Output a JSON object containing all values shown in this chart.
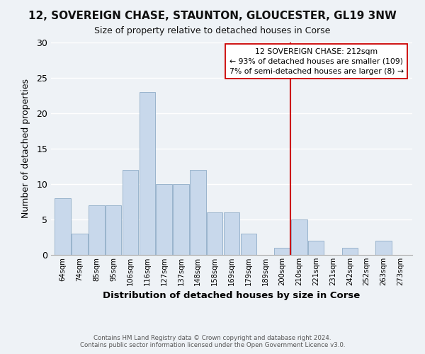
{
  "title": "12, SOVEREIGN CHASE, STAUNTON, GLOUCESTER, GL19 3NW",
  "subtitle": "Size of property relative to detached houses in Corse",
  "xlabel": "Distribution of detached houses by size in Corse",
  "ylabel": "Number of detached properties",
  "bin_labels": [
    "64sqm",
    "74sqm",
    "85sqm",
    "95sqm",
    "106sqm",
    "116sqm",
    "127sqm",
    "137sqm",
    "148sqm",
    "158sqm",
    "169sqm",
    "179sqm",
    "189sqm",
    "200sqm",
    "210sqm",
    "221sqm",
    "231sqm",
    "242sqm",
    "252sqm",
    "263sqm",
    "273sqm"
  ],
  "bar_heights": [
    8,
    3,
    7,
    7,
    12,
    23,
    10,
    10,
    12,
    6,
    6,
    3,
    0,
    1,
    5,
    2,
    0,
    1,
    0,
    2,
    0
  ],
  "bar_color": "#c8d8eb",
  "bar_edge_color": "#9ab4cc",
  "ylim": [
    0,
    30
  ],
  "yticks": [
    0,
    5,
    10,
    15,
    20,
    25,
    30
  ],
  "vline_color": "#cc0000",
  "annotation_title": "12 SOVEREIGN CHASE: 212sqm",
  "annotation_line1": "← 93% of detached houses are smaller (109)",
  "annotation_line2": "7% of semi-detached houses are larger (8) →",
  "footer1": "Contains HM Land Registry data © Crown copyright and database right 2024.",
  "footer2": "Contains public sector information licensed under the Open Government Licence v3.0.",
  "background_color": "#eef2f6",
  "plot_background_color": "#eef2f6",
  "grid_color": "#ffffff",
  "vline_index": 14
}
